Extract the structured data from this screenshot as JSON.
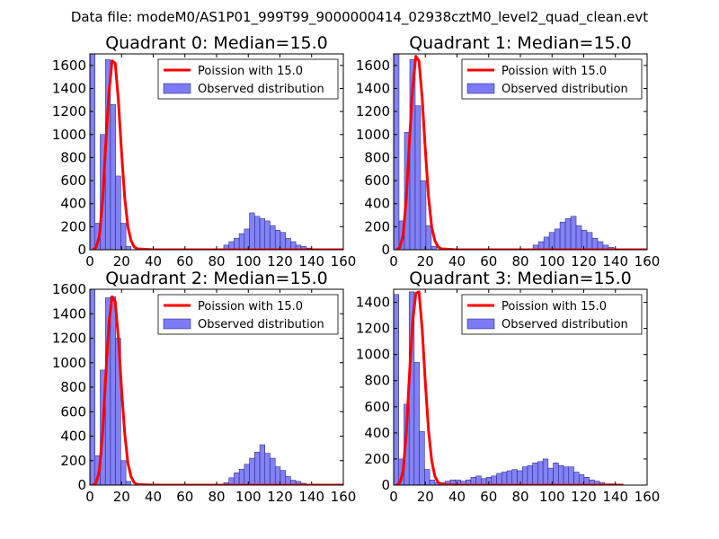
{
  "figure": {
    "suptitle": "Data file: modeM0/AS1P01_999T99_9000000414_02938cztM0_level2_quad_clean.evt"
  },
  "chart_data": [
    {
      "type": "bar",
      "title": "Quadrant 0: Median=15.0",
      "xlim": [
        0,
        160
      ],
      "ylim": [
        0,
        1700
      ],
      "xticks": [
        0,
        20,
        40,
        60,
        80,
        100,
        120,
        140,
        160
      ],
      "yticks": [
        0,
        200,
        400,
        600,
        800,
        1000,
        1200,
        1400,
        1600
      ],
      "legend_position": "top-right",
      "series": [
        {
          "name": "Poission with 15.0",
          "kind": "line",
          "color": "#ff0000",
          "x": [
            2,
            4,
            6,
            8,
            10,
            12,
            14,
            16,
            18,
            20,
            22,
            24,
            26,
            28,
            30,
            40,
            60,
            80,
            100,
            120,
            140,
            160
          ],
          "y": [
            0,
            20,
            120,
            420,
            900,
            1360,
            1640,
            1620,
            1300,
            840,
            450,
            200,
            80,
            25,
            8,
            0,
            0,
            0,
            0,
            0,
            0,
            0
          ]
        },
        {
          "name": "Observed distribution",
          "kind": "histogram",
          "color": "#7b7bf5",
          "bin_width": 3.25,
          "bins": [
            [
              0,
              1720
            ],
            [
              3.25,
              230
            ],
            [
              6.5,
              1000
            ],
            [
              9.75,
              1650
            ],
            [
              13,
              1260
            ],
            [
              16.25,
              640
            ],
            [
              19.5,
              230
            ],
            [
              22.75,
              30
            ],
            [
              84.5,
              40
            ],
            [
              87.75,
              70
            ],
            [
              91,
              100
            ],
            [
              94.25,
              140
            ],
            [
              97.5,
              180
            ],
            [
              100.75,
              320
            ],
            [
              104,
              290
            ],
            [
              107.25,
              270
            ],
            [
              110.5,
              250
            ],
            [
              113.75,
              210
            ],
            [
              117,
              170
            ],
            [
              120.25,
              150
            ],
            [
              123.5,
              100
            ],
            [
              126.75,
              70
            ],
            [
              130,
              40
            ],
            [
              133.25,
              30
            ],
            [
              136.5,
              15
            ]
          ]
        }
      ]
    },
    {
      "type": "bar",
      "title": "Quadrant 1: Median=15.0",
      "xlim": [
        0,
        160
      ],
      "ylim": [
        0,
        1700
      ],
      "xticks": [
        0,
        20,
        40,
        60,
        80,
        100,
        120,
        140,
        160
      ],
      "yticks": [
        0,
        200,
        400,
        600,
        800,
        1000,
        1200,
        1400,
        1600
      ],
      "legend_position": "top-right",
      "series": [
        {
          "name": "Poission with 15.0",
          "kind": "line",
          "color": "#ff0000",
          "x": [
            2,
            4,
            6,
            8,
            10,
            12,
            14,
            16,
            18,
            20,
            22,
            24,
            26,
            28,
            30,
            40,
            60,
            80,
            100,
            120,
            140,
            160
          ],
          "y": [
            0,
            20,
            130,
            450,
            950,
            1400,
            1680,
            1640,
            1320,
            860,
            460,
            200,
            80,
            25,
            8,
            0,
            0,
            0,
            0,
            0,
            0,
            0
          ]
        },
        {
          "name": "Observed distribution",
          "kind": "histogram",
          "color": "#7b7bf5",
          "bin_width": 3.4,
          "bins": [
            [
              0,
              1720
            ],
            [
              3.4,
              250
            ],
            [
              6.8,
              1020
            ],
            [
              10.2,
              1650
            ],
            [
              13.6,
              1250
            ],
            [
              17,
              600
            ],
            [
              20.4,
              210
            ],
            [
              23.8,
              30
            ],
            [
              88,
              40
            ],
            [
              91.4,
              70
            ],
            [
              94.8,
              110
            ],
            [
              98.2,
              150
            ],
            [
              101.6,
              180
            ],
            [
              105,
              240
            ],
            [
              108.4,
              270
            ],
            [
              111.8,
              290
            ],
            [
              115.2,
              210
            ],
            [
              118.6,
              170
            ],
            [
              122,
              150
            ],
            [
              125.4,
              100
            ],
            [
              128.8,
              70
            ],
            [
              132.2,
              40
            ],
            [
              135.6,
              20
            ]
          ]
        }
      ]
    },
    {
      "type": "bar",
      "title": "Quadrant 2: Median=15.0",
      "xlim": [
        0,
        160
      ],
      "ylim": [
        0,
        1600
      ],
      "xticks": [
        0,
        20,
        40,
        60,
        80,
        100,
        120,
        140,
        160
      ],
      "yticks": [
        0,
        200,
        400,
        600,
        800,
        1000,
        1200,
        1400,
        1600
      ],
      "legend_position": "top-right",
      "series": [
        {
          "name": "Poission with 15.0",
          "kind": "line",
          "color": "#ff0000",
          "x": [
            2,
            4,
            6,
            8,
            10,
            12,
            14,
            16,
            18,
            20,
            22,
            24,
            26,
            28,
            30,
            40,
            60,
            80,
            100,
            120,
            140,
            160
          ],
          "y": [
            0,
            20,
            120,
            420,
            880,
            1320,
            1540,
            1500,
            1200,
            780,
            420,
            180,
            70,
            20,
            6,
            0,
            0,
            0,
            0,
            0,
            0,
            0
          ]
        },
        {
          "name": "Observed distribution",
          "kind": "histogram",
          "color": "#7b7bf5",
          "bin_width": 3.25,
          "bins": [
            [
              0,
              1600
            ],
            [
              3.25,
              240
            ],
            [
              6.5,
              940
            ],
            [
              9.75,
              1530
            ],
            [
              13,
              1540
            ],
            [
              16.25,
              1200
            ],
            [
              19.5,
              200
            ],
            [
              22.75,
              30
            ],
            [
              84.5,
              20
            ],
            [
              87.75,
              60
            ],
            [
              91,
              100
            ],
            [
              94.25,
              130
            ],
            [
              97.5,
              170
            ],
            [
              100.75,
              220
            ],
            [
              104,
              270
            ],
            [
              107.25,
              330
            ],
            [
              110.5,
              260
            ],
            [
              113.75,
              220
            ],
            [
              117,
              150
            ],
            [
              120.25,
              120
            ],
            [
              123.5,
              70
            ],
            [
              126.75,
              40
            ],
            [
              130,
              30
            ],
            [
              133.25,
              15
            ]
          ]
        }
      ]
    },
    {
      "type": "bar",
      "title": "Quadrant 3: Median=15.0",
      "xlim": [
        0,
        160
      ],
      "ylim": [
        0,
        1500
      ],
      "xticks": [
        0,
        20,
        40,
        60,
        80,
        100,
        120,
        140,
        160
      ],
      "yticks": [
        0,
        200,
        400,
        600,
        800,
        1000,
        1200,
        1400
      ],
      "legend_position": "top-right",
      "series": [
        {
          "name": "Poission with 15.0",
          "kind": "line",
          "color": "#ff0000",
          "x": [
            2,
            4,
            6,
            8,
            10,
            12,
            14,
            16,
            18,
            20,
            22,
            24,
            26,
            28,
            30,
            40,
            60,
            80,
            100,
            120,
            140,
            145
          ],
          "y": [
            0,
            20,
            110,
            400,
            850,
            1250,
            1470,
            1480,
            1200,
            780,
            420,
            190,
            70,
            20,
            6,
            0,
            0,
            0,
            0,
            0,
            0,
            0
          ]
        },
        {
          "name": "Observed distribution",
          "kind": "histogram",
          "color": "#7b7bf5",
          "bin_width": 3.25,
          "bins": [
            [
              0,
              1460
            ],
            [
              3.25,
              200
            ],
            [
              6.5,
              620
            ],
            [
              9.75,
              1480
            ],
            [
              13,
              940
            ],
            [
              16.25,
              410
            ],
            [
              19.5,
              120
            ],
            [
              22.75,
              40
            ],
            [
              26,
              20
            ],
            [
              29.25,
              20
            ],
            [
              32.5,
              30
            ],
            [
              35.75,
              40
            ],
            [
              39,
              40
            ],
            [
              42.25,
              30
            ],
            [
              45.5,
              40
            ],
            [
              48.75,
              60
            ],
            [
              52,
              70
            ],
            [
              55.25,
              50
            ],
            [
              58.5,
              60
            ],
            [
              61.75,
              70
            ],
            [
              65,
              90
            ],
            [
              68.25,
              100
            ],
            [
              71.5,
              110
            ],
            [
              74.75,
              120
            ],
            [
              78,
              110
            ],
            [
              81.25,
              140
            ],
            [
              84.5,
              150
            ],
            [
              87.75,
              170
            ],
            [
              91,
              180
            ],
            [
              94.25,
              200
            ],
            [
              97.5,
              130
            ],
            [
              100.75,
              170
            ],
            [
              104,
              150
            ],
            [
              107.25,
              140
            ],
            [
              110.5,
              140
            ],
            [
              113.75,
              100
            ],
            [
              117,
              80
            ],
            [
              120.25,
              60
            ],
            [
              123.5,
              40
            ],
            [
              126.75,
              30
            ],
            [
              130,
              20
            ],
            [
              133.25,
              10
            ],
            [
              136.5,
              10
            ]
          ]
        }
      ]
    }
  ]
}
